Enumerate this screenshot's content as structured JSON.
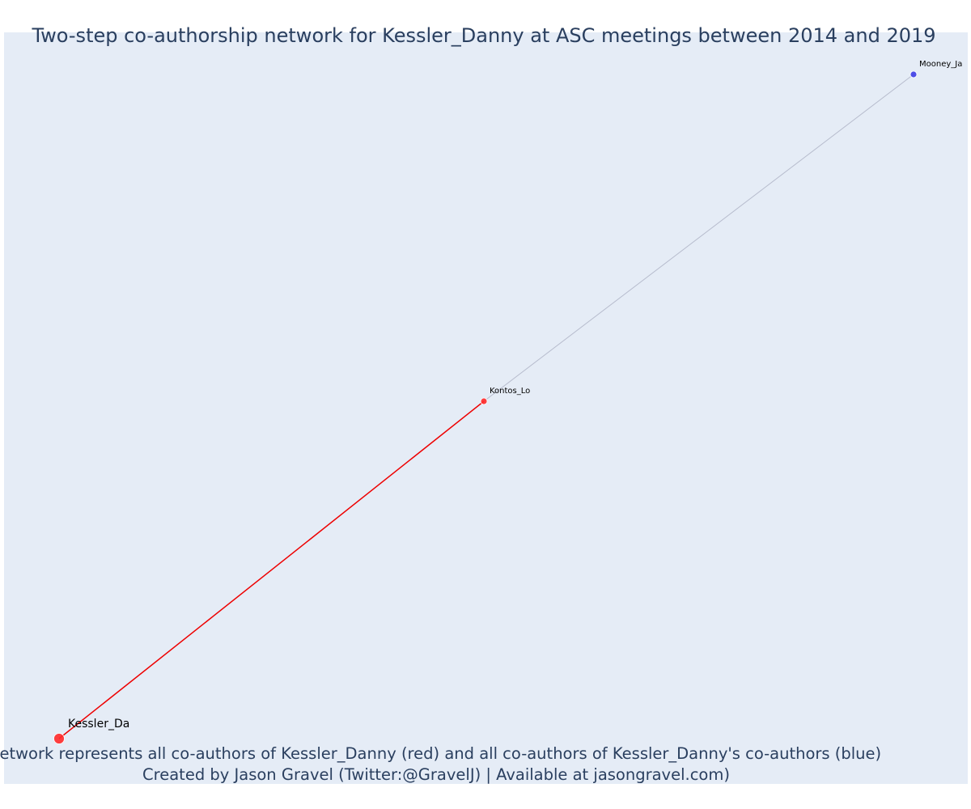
{
  "title": "Two-step co-authorship network for Kessler_Danny at ASC meetings between 2014 and 2019",
  "caption": {
    "line1": "Network represents all co-authors of Kessler_Danny (red) and all co-authors of Kessler_Danny's co-authors (blue)",
    "line2": "Created by Jason Gravel (Twitter:@GravelJ) | Available at jasongravel.com)"
  },
  "colors": {
    "plot_background": "#e5ecf6",
    "text": "#2a3f5f",
    "first_degree": "#ff2a2a",
    "second_degree": "#3d3de6",
    "first_degree_edge": "#ee0000",
    "second_degree_edge": "#b7bccd"
  },
  "network": {
    "nodes": [
      {
        "id": "kessler",
        "label": "Kessler_Da",
        "group": "ego"
      },
      {
        "id": "kontos",
        "label": "Kontos_Lo",
        "group": "first_degree"
      },
      {
        "id": "mooney",
        "label": "Mooney_Ja",
        "group": "second_degree"
      }
    ],
    "edges": [
      {
        "source": "kessler",
        "target": "kontos",
        "group": "first_degree"
      },
      {
        "source": "kontos",
        "target": "mooney",
        "group": "second_degree"
      }
    ]
  }
}
